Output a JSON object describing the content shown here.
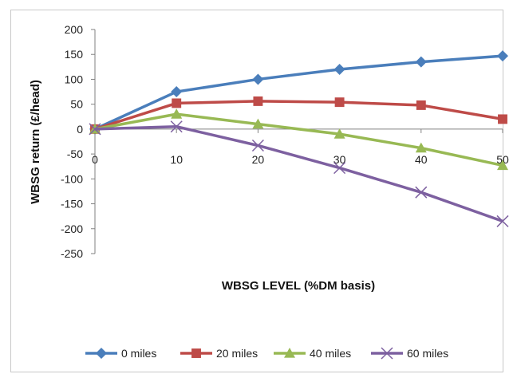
{
  "chart_data": {
    "type": "line",
    "title": "",
    "xlabel": "WBSG LEVEL (%DM basis)",
    "ylabel": "WBSG return (£/head)",
    "x": [
      0,
      10,
      20,
      30,
      40,
      50
    ],
    "xlim": [
      0,
      50
    ],
    "ylim": [
      -250,
      200
    ],
    "xticks": [
      0,
      10,
      20,
      30,
      40,
      50
    ],
    "yticks": [
      200,
      150,
      100,
      50,
      0,
      -50,
      -100,
      -150,
      -200,
      -250
    ],
    "grid": false,
    "legend_position": "bottom",
    "series": [
      {
        "name": "0 miles",
        "color": "#4a7ebb",
        "marker": "diamond",
        "values": [
          0,
          75,
          100,
          120,
          135,
          147
        ]
      },
      {
        "name": "20 miles",
        "color": "#be4b48",
        "marker": "square",
        "values": [
          0,
          52,
          56,
          54,
          48,
          20
        ]
      },
      {
        "name": "40 miles",
        "color": "#98b954",
        "marker": "triangle",
        "values": [
          0,
          30,
          10,
          -10,
          -38,
          -73
        ]
      },
      {
        "name": "60 miles",
        "color": "#7d60a0",
        "marker": "x",
        "values": [
          0,
          5,
          -33,
          -78,
          -127,
          -185
        ]
      }
    ]
  }
}
